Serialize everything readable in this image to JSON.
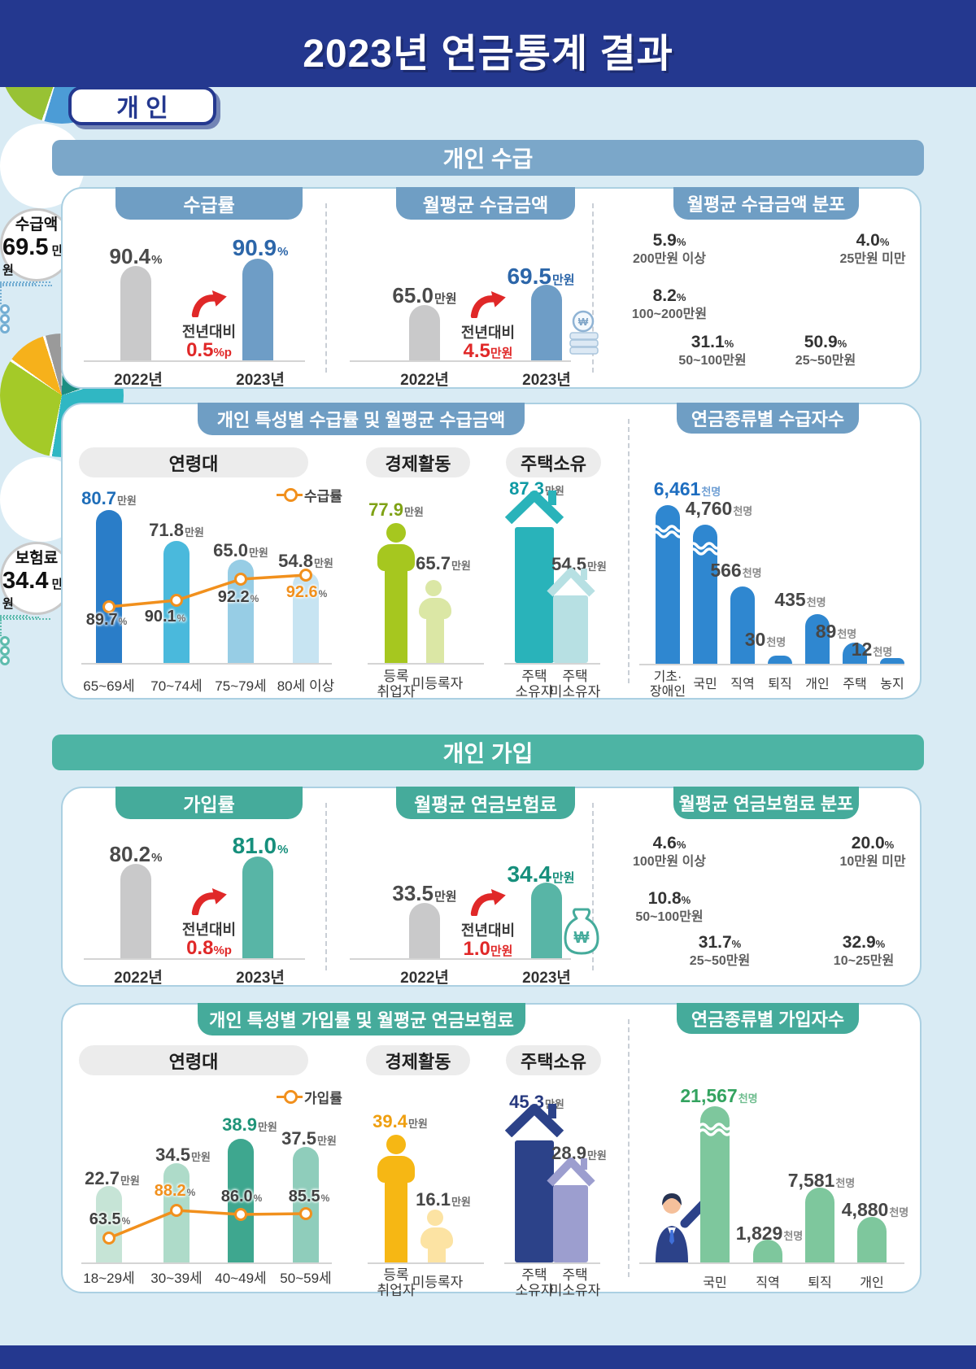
{
  "header": {
    "title": "2023년 연금통계 결과",
    "badge": "개 인"
  },
  "sections": {
    "receipt": "개인 수급",
    "join": "개인 가입"
  },
  "by_char_tabs": {
    "receipt": "개인 특성별 수급률 및 월평균 수급금액",
    "join": "개인 특성별 가입률 및 월평균 연금보험료"
  },
  "chart_data": [
    {
      "id": "receipt_rate",
      "type": "bar",
      "title": "수급률",
      "categories": [
        "2022년",
        "2023년"
      ],
      "values": [
        "90.4",
        "90.9"
      ],
      "unit": "%",
      "yoy_label": "전년대비",
      "yoy_value": "0.5",
      "yoy_unit": "%p"
    },
    {
      "id": "receipt_amount",
      "type": "bar",
      "title": "월평균 수급금액",
      "categories": [
        "2022년",
        "2023년"
      ],
      "values": [
        "65.0",
        "69.5"
      ],
      "unit": "만원",
      "yoy_label": "전년대비",
      "yoy_value": "4.5",
      "yoy_unit": "만원"
    },
    {
      "id": "receipt_dist",
      "type": "pie",
      "title": "월평균 수급금액 분포",
      "center_label": "수급액",
      "center_value": "69.5",
      "center_unit": "만원",
      "slices": [
        {
          "pct": 4.0,
          "label": "25만원 미만",
          "color": "#999999"
        },
        {
          "pct": 50.9,
          "label": "25~50만원",
          "color": "#4c9cd6"
        },
        {
          "pct": 31.1,
          "label": "50~100만원",
          "color": "#98c234"
        },
        {
          "pct": 8.2,
          "label": "100~200만원",
          "color": "#badcec"
        },
        {
          "pct": 5.9,
          "label": "200만원 이상",
          "color": "#f6b41c"
        }
      ]
    },
    {
      "id": "receipt_age",
      "type": "bar+line",
      "title": "연령대",
      "legend": "수급률",
      "categories": [
        "65~69세",
        "70~74세",
        "75~79세",
        "80세 이상"
      ],
      "amounts": [
        "80.7",
        "71.8",
        "65.0",
        "54.8"
      ],
      "amount_unit": "만원",
      "rates": [
        "89.7",
        "90.1",
        "92.2",
        "92.6"
      ],
      "rate_unit": "%"
    },
    {
      "id": "receipt_econ",
      "type": "pictogram-bar",
      "title": "경제활동",
      "categories": [
        [
          "등록",
          "취업자"
        ],
        [
          "미등록자"
        ]
      ],
      "values": [
        "77.9",
        "65.7"
      ],
      "unit": "만원"
    },
    {
      "id": "receipt_house",
      "type": "pictogram-bar",
      "title": "주택소유",
      "categories": [
        [
          "주택",
          "소유자"
        ],
        [
          "주택",
          "미소유자"
        ]
      ],
      "values": [
        "87.3",
        "54.5"
      ],
      "unit": "만원"
    },
    {
      "id": "receipt_by_type",
      "type": "bar",
      "title": "연금종류별 수급자수",
      "unit": "천명",
      "categories": [
        [
          "기초·",
          "장애인"
        ],
        [
          "국민"
        ],
        [
          "직역"
        ],
        [
          "퇴직"
        ],
        [
          "개인"
        ],
        [
          "주택"
        ],
        [
          "농지"
        ]
      ],
      "values": [
        "6,461",
        "4,760",
        "566",
        "30",
        "435",
        "89",
        "12"
      ]
    },
    {
      "id": "join_rate",
      "type": "bar",
      "title": "가입률",
      "categories": [
        "2022년",
        "2023년"
      ],
      "values": [
        "80.2",
        "81.0"
      ],
      "unit": "%",
      "yoy_label": "전년대비",
      "yoy_value": "0.8",
      "yoy_unit": "%p"
    },
    {
      "id": "join_premium",
      "type": "bar",
      "title": "월평균 연금보험료",
      "categories": [
        "2022년",
        "2023년"
      ],
      "values": [
        "33.5",
        "34.4"
      ],
      "unit": "만원",
      "yoy_label": "전년대비",
      "yoy_value": "1.0",
      "yoy_unit": "만원"
    },
    {
      "id": "join_dist",
      "type": "pie",
      "title": "월평균 연금보험료 분포",
      "center_label": "보험료",
      "center_value": "34.4",
      "center_unit": "만원",
      "slices": [
        {
          "pct": 20.0,
          "label": "10만원 미만",
          "color": "#1b8e82"
        },
        {
          "pct": 32.9,
          "label": "10~25만원",
          "color": "#30b7c3"
        },
        {
          "pct": 31.7,
          "label": "25~50만원",
          "color": "#a4ca28"
        },
        {
          "pct": 10.8,
          "label": "50~100만원",
          "color": "#f6b11b"
        },
        {
          "pct": 4.6,
          "label": "100만원 이상",
          "color": "#9a9a9a"
        }
      ]
    },
    {
      "id": "join_age",
      "type": "bar+line",
      "title": "연령대",
      "legend": "가입률",
      "categories": [
        "18~29세",
        "30~39세",
        "40~49세",
        "50~59세"
      ],
      "amounts": [
        "22.7",
        "34.5",
        "38.9",
        "37.5"
      ],
      "amount_unit": "만원",
      "rates": [
        "63.5",
        "88.2",
        "86.0",
        "85.5"
      ],
      "rate_unit": "%"
    },
    {
      "id": "join_econ",
      "type": "pictogram-bar",
      "title": "경제활동",
      "categories": [
        [
          "등록",
          "취업자"
        ],
        [
          "미등록자"
        ]
      ],
      "values": [
        "39.4",
        "16.1"
      ],
      "unit": "만원"
    },
    {
      "id": "join_house",
      "type": "pictogram-bar",
      "title": "주택소유",
      "categories": [
        [
          "주택",
          "소유자"
        ],
        [
          "주택",
          "미소유자"
        ]
      ],
      "values": [
        "45.3",
        "28.9"
      ],
      "unit": "만원"
    },
    {
      "id": "join_by_type",
      "type": "bar",
      "title": "연금종류별 가입자수",
      "unit": "천명",
      "categories": [
        [
          "국민"
        ],
        [
          "직역"
        ],
        [
          "퇴직"
        ],
        [
          "개인"
        ]
      ],
      "values": [
        "21,567",
        "1,829",
        "7,581",
        "4,880"
      ]
    }
  ]
}
